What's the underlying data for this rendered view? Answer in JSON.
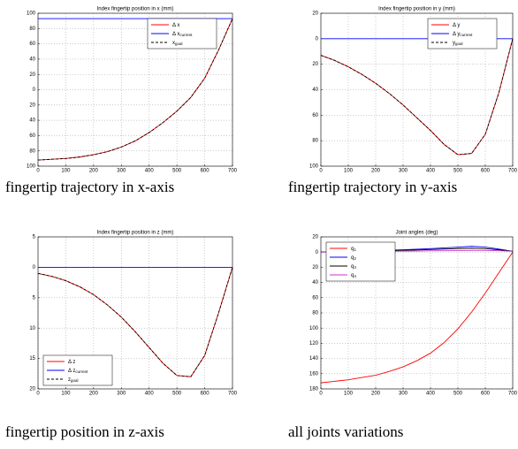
{
  "chart_data": [
    {
      "type": "line",
      "title": "Index fingertip position in x (mm)",
      "caption": "fingertip trajectory in x-axis",
      "x": [
        0,
        50,
        100,
        150,
        200,
        250,
        300,
        350,
        400,
        450,
        500,
        550,
        600,
        650,
        700
      ],
      "xlim": [
        0,
        700
      ],
      "xticks": [
        0,
        100,
        200,
        300,
        400,
        500,
        600,
        700
      ],
      "ylim": [
        -100,
        100
      ],
      "yticks": [
        {
          "value": -100,
          "label": "100"
        },
        {
          "value": -80,
          "label": "80"
        },
        {
          "value": -60,
          "label": "60"
        },
        {
          "value": -40,
          "label": "40"
        },
        {
          "value": -20,
          "label": "20"
        },
        0,
        20,
        40,
        60,
        80,
        100
      ],
      "grid": true,
      "legend": "upper right",
      "series": [
        {
          "name": "Δ x",
          "color": "#ff0000",
          "dash": false,
          "values": [
            -92,
            -91,
            -90,
            -88,
            -85,
            -81,
            -75,
            -67,
            -56,
            -43,
            -28,
            -10,
            15,
            52,
            93
          ]
        },
        {
          "name": "Δ x",
          "subscript": "current",
          "color": "#0000ff",
          "dash": false,
          "values": [
            93,
            93,
            93,
            93,
            93,
            93,
            93,
            93,
            93,
            93,
            93,
            93,
            93,
            93,
            93
          ]
        },
        {
          "name": "x",
          "subscript": "goal",
          "color": "#000000",
          "dash": true,
          "values": [
            -92,
            -91,
            -90,
            -88,
            -85,
            -81,
            -75,
            -67,
            -56,
            -43,
            -28,
            -10,
            15,
            52,
            93
          ]
        }
      ]
    },
    {
      "type": "line",
      "title": "Index fingertip position in y (mm)",
      "caption": "fingertip trajectory in y-axis",
      "x": [
        0,
        50,
        100,
        150,
        200,
        250,
        300,
        350,
        400,
        450,
        500,
        550,
        600,
        650,
        700
      ],
      "xlim": [
        0,
        700
      ],
      "xticks": [
        0,
        100,
        200,
        300,
        400,
        500,
        600,
        700
      ],
      "ylim": [
        -100,
        20
      ],
      "yticks": [
        {
          "value": -100,
          "label": "100"
        },
        {
          "value": -80,
          "label": "80"
        },
        {
          "value": -60,
          "label": "60"
        },
        {
          "value": -40,
          "label": "40"
        },
        {
          "value": -20,
          "label": "20"
        },
        0,
        20
      ],
      "grid": true,
      "legend": "upper right",
      "series": [
        {
          "name": "Δ y",
          "color": "#ff0000",
          "dash": false,
          "values": [
            -13,
            -17,
            -22,
            -28,
            -35,
            -43,
            -52,
            -62,
            -72,
            -83,
            -91,
            -90,
            -75,
            -42,
            0
          ]
        },
        {
          "name": "Δ y",
          "subscript": "current",
          "color": "#0000ff",
          "dash": false,
          "values": [
            0,
            0,
            0,
            0,
            0,
            0,
            0,
            0,
            0,
            0,
            0,
            0,
            0,
            0,
            0
          ]
        },
        {
          "name": "y",
          "subscript": "goal",
          "color": "#000000",
          "dash": true,
          "values": [
            -13,
            -17,
            -22,
            -28,
            -35,
            -43,
            -52,
            -62,
            -72,
            -83,
            -91,
            -90,
            -75,
            -42,
            0
          ]
        }
      ]
    },
    {
      "type": "line",
      "title": "Index fingertip position in z (mm)",
      "caption": "fingertip position in z-axis",
      "x": [
        0,
        50,
        100,
        150,
        200,
        250,
        300,
        350,
        400,
        450,
        500,
        550,
        600,
        650,
        700
      ],
      "xlim": [
        0,
        700
      ],
      "xticks": [
        0,
        100,
        200,
        300,
        400,
        500,
        600,
        700
      ],
      "ylim": [
        -20,
        5
      ],
      "yticks": [
        {
          "value": -20,
          "label": "20"
        },
        {
          "value": -15,
          "label": "15"
        },
        {
          "value": -10,
          "label": "10"
        },
        {
          "value": -5,
          "label": "5"
        },
        0,
        5
      ],
      "grid": true,
      "legend": "lower left",
      "series": [
        {
          "name": "Δ z",
          "color": "#ff0000",
          "dash": false,
          "values": [
            -1,
            -1.5,
            -2.2,
            -3.2,
            -4.5,
            -6.2,
            -8.2,
            -10.6,
            -13.2,
            -15.8,
            -17.8,
            -18,
            -14.5,
            -7.5,
            0
          ]
        },
        {
          "name": "Δ z",
          "subscript": "current",
          "color": "#0000ff",
          "dash": false,
          "values": [
            0,
            0,
            0,
            0,
            0,
            0,
            0,
            0,
            0,
            0,
            0,
            0,
            0,
            0,
            0
          ]
        },
        {
          "name": "z",
          "subscript": "goal",
          "color": "#000000",
          "dash": true,
          "values": [
            -1,
            -1.5,
            -2.2,
            -3.2,
            -4.5,
            -6.2,
            -8.2,
            -10.6,
            -13.2,
            -15.8,
            -17.8,
            -18,
            -14.5,
            -7.5,
            0
          ]
        }
      ]
    },
    {
      "type": "line",
      "title": "Joint angles (deg)",
      "caption": "all joints variations",
      "x": [
        0,
        50,
        100,
        150,
        200,
        250,
        300,
        350,
        400,
        450,
        500,
        550,
        600,
        650,
        700
      ],
      "xlim": [
        0,
        700
      ],
      "xticks": [
        0,
        100,
        200,
        300,
        400,
        500,
        600,
        700
      ],
      "ylim": [
        -180,
        20
      ],
      "yticks": [
        {
          "value": -180,
          "label": "180"
        },
        {
          "value": -160,
          "label": "160"
        },
        {
          "value": -140,
          "label": "140"
        },
        {
          "value": -120,
          "label": "120"
        },
        {
          "value": -100,
          "label": "100"
        },
        {
          "value": -80,
          "label": "80"
        },
        {
          "value": -60,
          "label": "60"
        },
        {
          "value": -40,
          "label": "40"
        },
        {
          "value": -20,
          "label": "20"
        },
        0,
        20
      ],
      "grid": true,
      "legend": "upper left",
      "series": [
        {
          "name": "q",
          "subscript": "1",
          "color": "#ff0000",
          "dash": false,
          "values": [
            -172,
            -170,
            -168,
            -165,
            -162,
            -157,
            -151,
            -143,
            -133,
            -119,
            -101,
            -79,
            -54,
            -27,
            0
          ]
        },
        {
          "name": "q",
          "subscript": "2",
          "color": "#0000ff",
          "dash": false,
          "values": [
            0,
            0.5,
            1,
            1.5,
            2,
            2.5,
            3,
            3.8,
            4.5,
            5.5,
            6.5,
            7.5,
            6.5,
            4,
            1
          ]
        },
        {
          "name": "q",
          "subscript": "3",
          "color": "#000000",
          "dash": false,
          "values": [
            0,
            0.3,
            0.6,
            1,
            1.4,
            1.8,
            2.3,
            2.8,
            3.4,
            4,
            4.6,
            5,
            4.5,
            3,
            1
          ]
        },
        {
          "name": "q",
          "subscript": "4",
          "color": "#cc33cc",
          "dash": false,
          "values": [
            0,
            0.2,
            0.4,
            0.6,
            0.8,
            1,
            1.2,
            1.4,
            1.6,
            1.8,
            2,
            2.2,
            2.2,
            1.8,
            1
          ]
        }
      ]
    }
  ]
}
